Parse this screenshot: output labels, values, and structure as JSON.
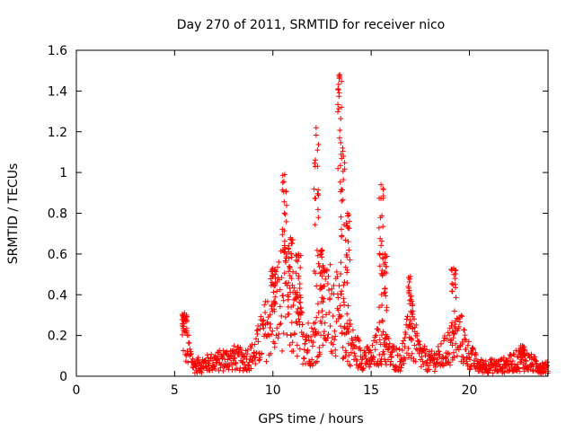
{
  "chart_data": {
    "type": "scatter",
    "title": "Day 270 of 2011, SRMTID for receiver nico",
    "xlabel": "GPS time / hours",
    "ylabel": "SRMTID / TECUs",
    "xlim": [
      0,
      24
    ],
    "ylim": [
      0,
      1.6
    ],
    "x_ticks": [
      0,
      5,
      10,
      15,
      20
    ],
    "x_tick_labels": [
      "0",
      "5",
      "10",
      "15",
      "20"
    ],
    "y_ticks": [
      0,
      0.2,
      0.4,
      0.6,
      0.8,
      1,
      1.2,
      1.4,
      1.6
    ],
    "y_tick_labels": [
      "0",
      "0.2",
      "0.4",
      "0.6",
      "0.8",
      "1",
      "1.2",
      "1.4",
      "1.6"
    ],
    "grid": false,
    "marker": "+",
    "color": "#ff0000",
    "data_start_hours": 5.4,
    "baseline": {
      "x": [
        5.4,
        5.6,
        6.0,
        6.5,
        7.0,
        7.5,
        8.0,
        8.5,
        9.0,
        9.5,
        10.0,
        10.5,
        11.0,
        11.5,
        12.0,
        12.5,
        13.0,
        13.5,
        14.0,
        14.5,
        15.0,
        15.5,
        16.0,
        16.5,
        17.0,
        17.5,
        18.0,
        18.5,
        19.0,
        19.5,
        20.0,
        20.5,
        21.0,
        21.5,
        22.0,
        22.5,
        23.0,
        23.5,
        24.0
      ],
      "y": [
        0.25,
        0.15,
        0.05,
        0.06,
        0.07,
        0.08,
        0.09,
        0.08,
        0.1,
        0.2,
        0.3,
        0.4,
        0.28,
        0.2,
        0.15,
        0.3,
        0.35,
        0.25,
        0.15,
        0.1,
        0.08,
        0.18,
        0.1,
        0.08,
        0.22,
        0.1,
        0.07,
        0.09,
        0.15,
        0.2,
        0.1,
        0.05,
        0.05,
        0.05,
        0.06,
        0.08,
        0.07,
        0.05,
        0.04
      ]
    },
    "peaks": [
      {
        "x": 5.5,
        "y": 0.31
      },
      {
        "x": 10.0,
        "y": 0.53
      },
      {
        "x": 10.6,
        "y": 0.99
      },
      {
        "x": 10.9,
        "y": 0.68
      },
      {
        "x": 11.3,
        "y": 0.6
      },
      {
        "x": 12.2,
        "y": 1.22
      },
      {
        "x": 12.5,
        "y": 0.62
      },
      {
        "x": 13.4,
        "y": 1.48
      },
      {
        "x": 13.55,
        "y": 1.12
      },
      {
        "x": 13.8,
        "y": 0.8
      },
      {
        "x": 15.5,
        "y": 0.94
      },
      {
        "x": 15.7,
        "y": 0.6
      },
      {
        "x": 17.0,
        "y": 0.49
      },
      {
        "x": 19.2,
        "y": 0.53
      },
      {
        "x": 22.7,
        "y": 0.15
      }
    ]
  }
}
